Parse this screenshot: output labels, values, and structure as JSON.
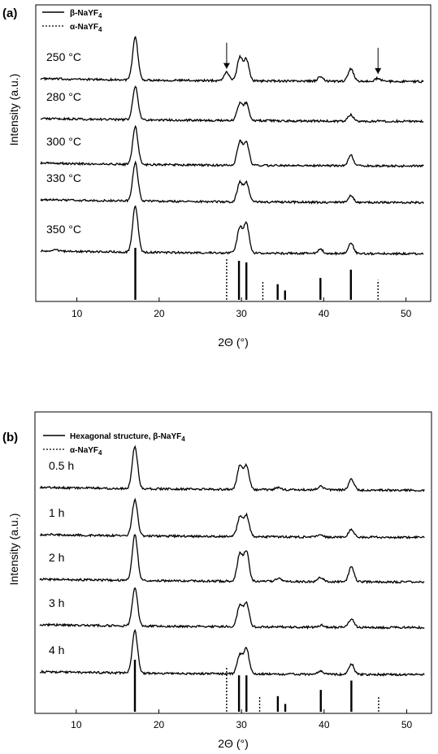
{
  "chart_data": [
    {
      "type": "line",
      "panel": "(a)",
      "xlabel": "2Θ (°)",
      "ylabel": "Intensity (a.u.)",
      "xlim": [
        5,
        53
      ],
      "xticks": [
        10,
        20,
        30,
        40,
        50
      ],
      "legend": [
        {
          "style": "solid",
          "text": "β-NaYF",
          "sub": "4"
        },
        {
          "style": "dotted",
          "text": "α-NaYF",
          "sub": "4"
        }
      ],
      "series": [
        {
          "name": "250 °C",
          "peaks": [
            [
              17.1,
              1.0
            ],
            [
              28.2,
              0.2
            ],
            [
              29.8,
              0.55
            ],
            [
              30.6,
              0.5
            ],
            [
              39.6,
              0.1
            ],
            [
              43.3,
              0.3
            ],
            [
              46.6,
              0.08
            ]
          ]
        },
        {
          "name": "280 °C",
          "peaks": [
            [
              17.1,
              0.8
            ],
            [
              29.8,
              0.4
            ],
            [
              30.6,
              0.4
            ],
            [
              43.3,
              0.15
            ]
          ]
        },
        {
          "name": "300 °C",
          "peaks": [
            [
              17.1,
              0.9
            ],
            [
              29.8,
              0.55
            ],
            [
              30.6,
              0.55
            ],
            [
              43.3,
              0.25
            ]
          ]
        },
        {
          "name": "330 °C",
          "peaks": [
            [
              17.1,
              0.9
            ],
            [
              29.8,
              0.45
            ],
            [
              30.6,
              0.45
            ],
            [
              43.3,
              0.15
            ]
          ]
        },
        {
          "name": "350 °C",
          "peaks": [
            [
              7.3,
              0.05
            ],
            [
              17.1,
              1.1
            ],
            [
              29.8,
              0.6
            ],
            [
              30.6,
              0.7
            ],
            [
              39.6,
              0.1
            ],
            [
              43.3,
              0.25
            ]
          ]
        }
      ],
      "annotations": [
        {
          "type": "arrow",
          "x": 28.2,
          "series": "250 °C"
        },
        {
          "type": "arrow",
          "x": 46.6,
          "series": "250 °C"
        }
      ],
      "reference_beta": [
        [
          17.1,
          1.0
        ],
        [
          29.7,
          0.75
        ],
        [
          30.6,
          0.72
        ],
        [
          34.4,
          0.3
        ],
        [
          35.3,
          0.18
        ],
        [
          39.6,
          0.42
        ],
        [
          43.3,
          0.58
        ]
      ],
      "reference_alpha": [
        [
          28.2,
          0.8
        ],
        [
          32.6,
          0.35
        ],
        [
          46.6,
          0.38
        ]
      ]
    },
    {
      "type": "line",
      "panel": "(b)",
      "xlabel": "2Θ (°)",
      "ylabel": "Intensity (a.u.)",
      "xlim": [
        5,
        53
      ],
      "xticks": [
        10,
        20,
        30,
        40,
        50
      ],
      "legend": [
        {
          "style": "solid",
          "text": "Hexagonal structure, β-NaYF",
          "sub": "4"
        },
        {
          "style": "dotted",
          "text": "α-NaYF",
          "sub": "4"
        }
      ],
      "series": [
        {
          "name": "0.5 h",
          "peaks": [
            [
              17.1,
              1.0
            ],
            [
              29.8,
              0.55
            ],
            [
              30.6,
              0.55
            ],
            [
              34.4,
              0.05
            ],
            [
              39.6,
              0.08
            ],
            [
              43.3,
              0.25
            ]
          ]
        },
        {
          "name": "1 h",
          "peaks": [
            [
              17.1,
              0.85
            ],
            [
              29.8,
              0.45
            ],
            [
              30.6,
              0.5
            ],
            [
              39.6,
              0.05
            ],
            [
              43.3,
              0.18
            ]
          ]
        },
        {
          "name": "2 h",
          "peaks": [
            [
              17.1,
              1.1
            ],
            [
              29.8,
              0.65
            ],
            [
              30.6,
              0.7
            ],
            [
              34.4,
              0.08
            ],
            [
              39.6,
              0.1
            ],
            [
              43.3,
              0.35
            ]
          ]
        },
        {
          "name": "3 h",
          "peaks": [
            [
              17.1,
              0.9
            ],
            [
              29.8,
              0.5
            ],
            [
              30.6,
              0.55
            ],
            [
              39.6,
              0.05
            ],
            [
              43.3,
              0.2
            ]
          ]
        },
        {
          "name": "4 h",
          "peaks": [
            [
              17.1,
              1.0
            ],
            [
              29.8,
              0.45
            ],
            [
              30.6,
              0.6
            ],
            [
              39.6,
              0.08
            ],
            [
              43.3,
              0.25
            ]
          ]
        }
      ],
      "reference_beta": [
        [
          17.1,
          1.0
        ],
        [
          29.7,
          0.7
        ],
        [
          30.6,
          0.7
        ],
        [
          34.4,
          0.3
        ],
        [
          35.3,
          0.15
        ],
        [
          39.6,
          0.42
        ],
        [
          43.3,
          0.6
        ]
      ],
      "reference_alpha": [
        [
          28.2,
          0.85
        ],
        [
          32.2,
          0.3
        ],
        [
          46.6,
          0.3
        ]
      ]
    }
  ]
}
